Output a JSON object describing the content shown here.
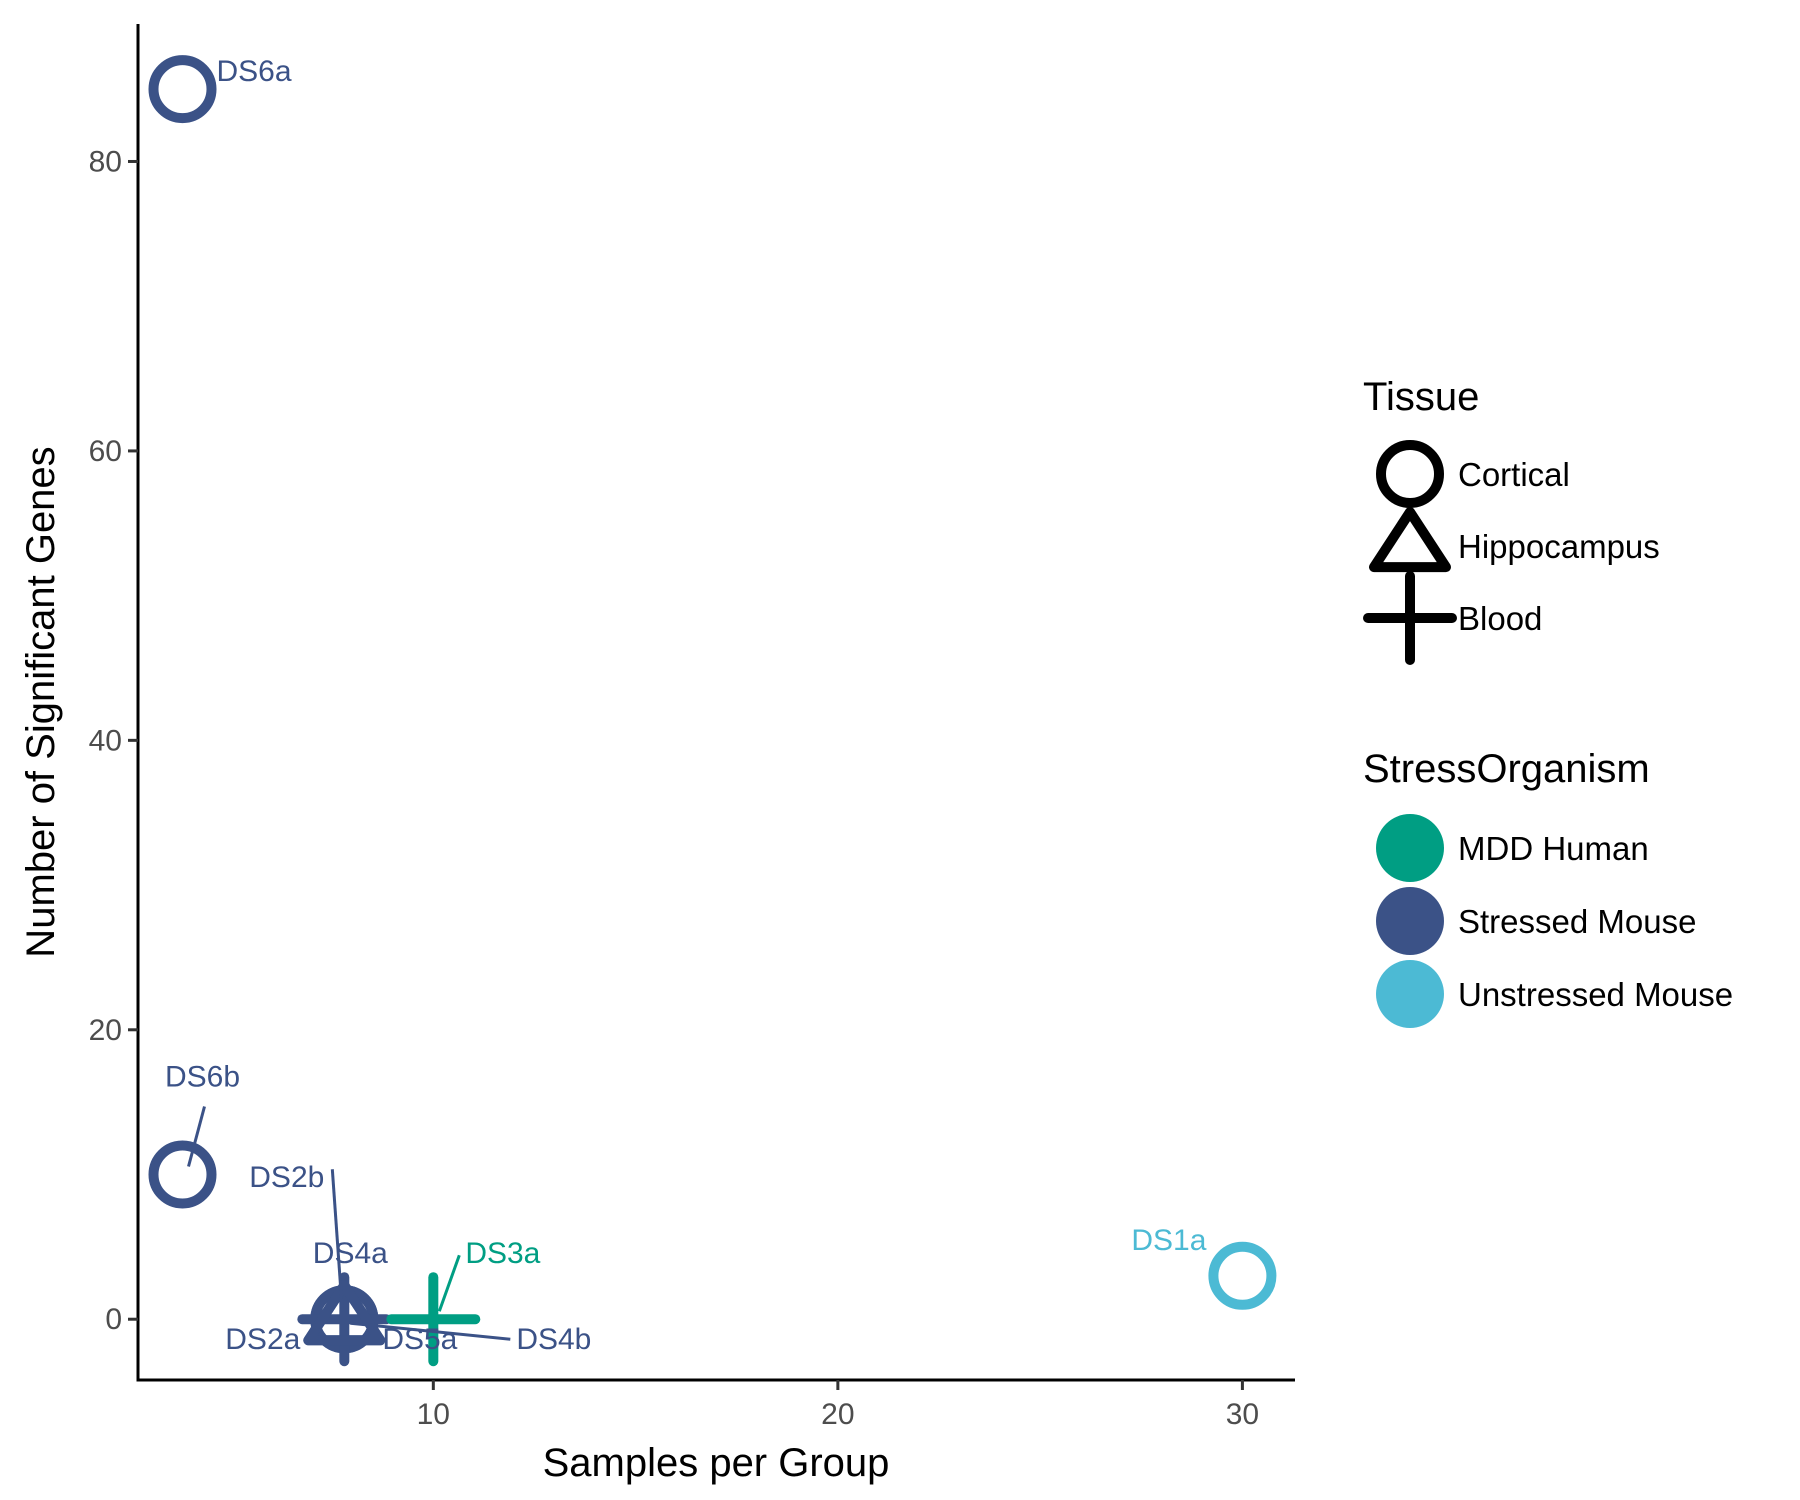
{
  "chart_data": {
    "type": "scatter",
    "xlabel": "Samples per Group",
    "ylabel": "Number of Significant Genes",
    "xlim": [
      2.7,
      31.3
    ],
    "ylim": [
      -4.2,
      89.5
    ],
    "xticks": [
      10,
      20,
      30
    ],
    "yticks": [
      0,
      20,
      40,
      60,
      80
    ],
    "grid": false,
    "legend_position": "right",
    "tissue_legend": {
      "title": "Tissue",
      "entries": [
        {
          "label": "Cortical",
          "shape": "circle"
        },
        {
          "label": "Hippocampus",
          "shape": "triangle"
        },
        {
          "label": "Blood",
          "shape": "cross"
        }
      ]
    },
    "color_legend": {
      "title": "StressOrganism",
      "entries": [
        {
          "label": "MDD Human",
          "color": "#009E83"
        },
        {
          "label": "Stressed Mouse",
          "color": "#3B5287"
        },
        {
          "label": "Unstressed Mouse",
          "color": "#4CBAD4"
        }
      ]
    },
    "points": [
      {
        "label": "DS6a",
        "x": 3.8,
        "y": 85,
        "tissue": "Cortical",
        "group": "Stressed Mouse"
      },
      {
        "label": "DS6b",
        "x": 3.8,
        "y": 10,
        "tissue": "Cortical",
        "group": "Stressed Mouse"
      },
      {
        "label": "DS2b",
        "x": 7.8,
        "y": 0,
        "tissue": "Cortical",
        "group": "Stressed Mouse"
      },
      {
        "label": "DS2a",
        "x": 7.8,
        "y": 0,
        "tissue": "Hippocampus",
        "group": "Stressed Mouse"
      },
      {
        "label": "DS4a",
        "x": 7.8,
        "y": 0,
        "tissue": "Cortical",
        "group": "Stressed Mouse"
      },
      {
        "label": "DS4b",
        "x": 7.8,
        "y": 0,
        "tissue": "Blood",
        "group": "Stressed Mouse"
      },
      {
        "label": "DS5a",
        "x": 7.8,
        "y": 0,
        "tissue": "Hippocampus",
        "group": "Stressed Mouse"
      },
      {
        "label": "DS3a",
        "x": 10,
        "y": 0,
        "tissue": "Blood",
        "group": "MDD Human"
      },
      {
        "label": "DS1a",
        "x": 30,
        "y": 3,
        "tissue": "Cortical",
        "group": "Unstressed Mouse"
      }
    ]
  }
}
